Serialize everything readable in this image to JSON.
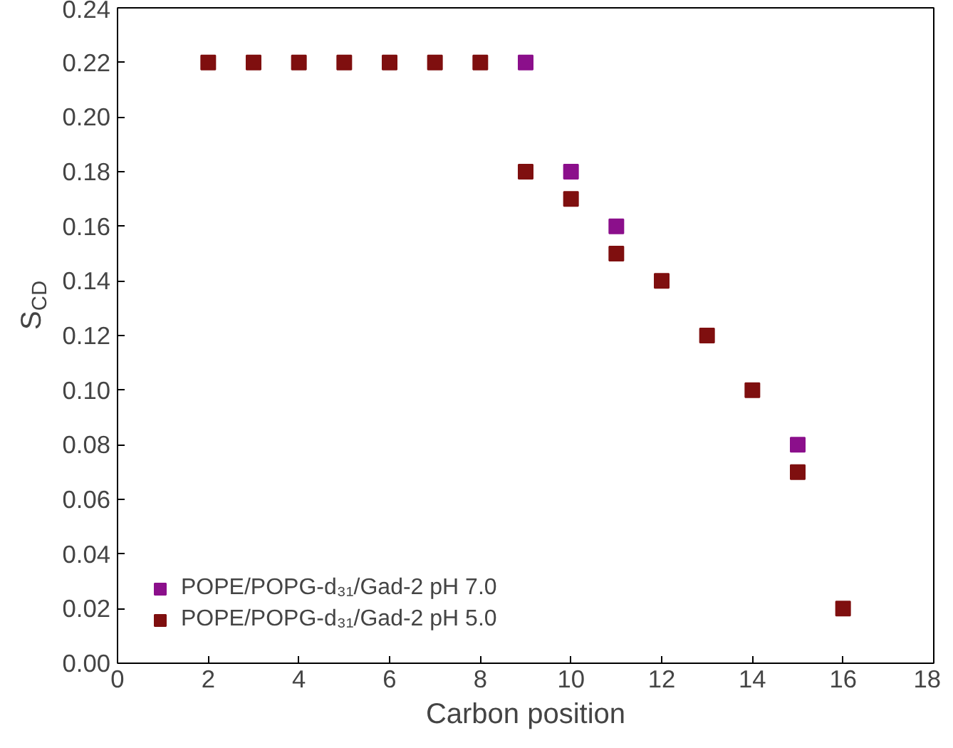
{
  "chart_data": {
    "type": "scatter",
    "xlabel": "Carbon position",
    "ylabel": "S$_{CD}$",
    "xlim": [
      0,
      18
    ],
    "ylim": [
      0,
      0.24
    ],
    "xticks": [
      0,
      2,
      4,
      6,
      8,
      10,
      12,
      14,
      16,
      18
    ],
    "yticks": [
      {
        "value": 0,
        "label": "0.00"
      },
      {
        "value": 0.02,
        "label": "0.02"
      },
      {
        "value": 0.04,
        "label": "0.04"
      },
      {
        "value": 0.06,
        "label": "0.06"
      },
      {
        "value": 0.08,
        "label": "0.08"
      },
      {
        "value": 0.1,
        "label": "0.10"
      },
      {
        "value": 0.12,
        "label": "0.12"
      },
      {
        "value": 0.14,
        "label": "0.14"
      },
      {
        "value": 0.16,
        "label": "0.16"
      },
      {
        "value": 0.18,
        "label": "0.18"
      },
      {
        "value": 0.2,
        "label": "0.20"
      },
      {
        "value": 0.22,
        "label": "0.22"
      },
      {
        "value": 0.24,
        "label": "0.24"
      }
    ],
    "marker": "square",
    "grid": false,
    "legend": "bottom left",
    "series": [
      {
        "name": "POPE/POPG-d₃₁/Gad-2 pH 7.0",
        "color": "#8b0f8b",
        "x": [
          9,
          10,
          11,
          15
        ],
        "values": [
          0.22,
          0.18,
          0.16,
          0.08
        ]
      },
      {
        "name": "POPE/POPG-d₃₁/Gad-2 pH 5.0",
        "color": "#7f0f0f",
        "x": [
          2,
          3,
          4,
          5,
          6,
          7,
          8,
          9,
          10,
          11,
          12,
          13,
          14,
          15,
          16
        ],
        "values": [
          0.22,
          0.22,
          0.22,
          0.22,
          0.22,
          0.22,
          0.22,
          0.18,
          0.17,
          0.15,
          0.14,
          0.12,
          0.1,
          0.07,
          0.02
        ]
      }
    ]
  }
}
